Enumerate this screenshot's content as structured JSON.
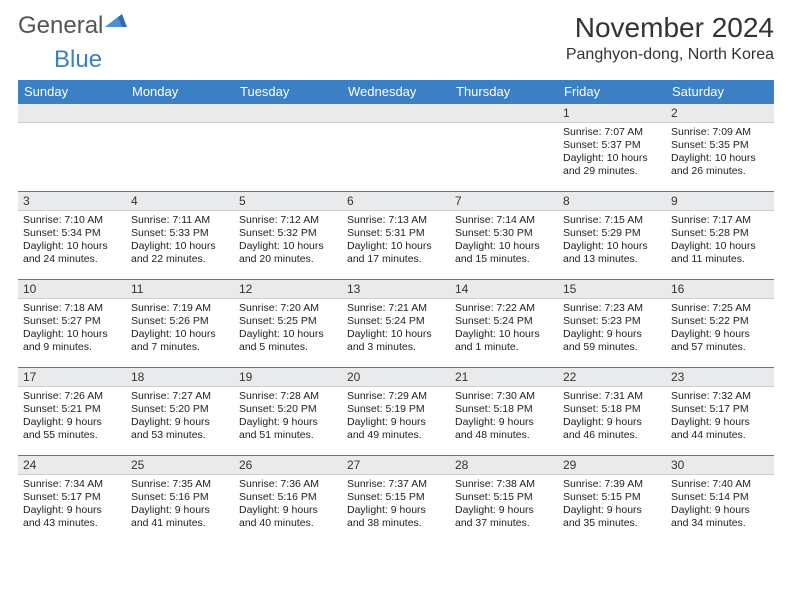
{
  "logo": {
    "part1": "General",
    "part2": "Blue"
  },
  "title": "November 2024",
  "location": "Panghyon-dong, North Korea",
  "colors": {
    "header_bg": "#3b7fc4",
    "header_text": "#ffffff",
    "daynum_bg": "#e9eaeb",
    "row_border": "#3b7fc4",
    "page_bg": "#ffffff"
  },
  "weekdays": [
    "Sunday",
    "Monday",
    "Tuesday",
    "Wednesday",
    "Thursday",
    "Friday",
    "Saturday"
  ],
  "weeks": [
    [
      {
        "blank": true
      },
      {
        "blank": true
      },
      {
        "blank": true
      },
      {
        "blank": true
      },
      {
        "blank": true
      },
      {
        "day": "1",
        "sunrise": "Sunrise: 7:07 AM",
        "sunset": "Sunset: 5:37 PM",
        "daylight": "Daylight: 10 hours and 29 minutes."
      },
      {
        "day": "2",
        "sunrise": "Sunrise: 7:09 AM",
        "sunset": "Sunset: 5:35 PM",
        "daylight": "Daylight: 10 hours and 26 minutes."
      }
    ],
    [
      {
        "day": "3",
        "sunrise": "Sunrise: 7:10 AM",
        "sunset": "Sunset: 5:34 PM",
        "daylight": "Daylight: 10 hours and 24 minutes."
      },
      {
        "day": "4",
        "sunrise": "Sunrise: 7:11 AM",
        "sunset": "Sunset: 5:33 PM",
        "daylight": "Daylight: 10 hours and 22 minutes."
      },
      {
        "day": "5",
        "sunrise": "Sunrise: 7:12 AM",
        "sunset": "Sunset: 5:32 PM",
        "daylight": "Daylight: 10 hours and 20 minutes."
      },
      {
        "day": "6",
        "sunrise": "Sunrise: 7:13 AM",
        "sunset": "Sunset: 5:31 PM",
        "daylight": "Daylight: 10 hours and 17 minutes."
      },
      {
        "day": "7",
        "sunrise": "Sunrise: 7:14 AM",
        "sunset": "Sunset: 5:30 PM",
        "daylight": "Daylight: 10 hours and 15 minutes."
      },
      {
        "day": "8",
        "sunrise": "Sunrise: 7:15 AM",
        "sunset": "Sunset: 5:29 PM",
        "daylight": "Daylight: 10 hours and 13 minutes."
      },
      {
        "day": "9",
        "sunrise": "Sunrise: 7:17 AM",
        "sunset": "Sunset: 5:28 PM",
        "daylight": "Daylight: 10 hours and 11 minutes."
      }
    ],
    [
      {
        "day": "10",
        "sunrise": "Sunrise: 7:18 AM",
        "sunset": "Sunset: 5:27 PM",
        "daylight": "Daylight: 10 hours and 9 minutes."
      },
      {
        "day": "11",
        "sunrise": "Sunrise: 7:19 AM",
        "sunset": "Sunset: 5:26 PM",
        "daylight": "Daylight: 10 hours and 7 minutes."
      },
      {
        "day": "12",
        "sunrise": "Sunrise: 7:20 AM",
        "sunset": "Sunset: 5:25 PM",
        "daylight": "Daylight: 10 hours and 5 minutes."
      },
      {
        "day": "13",
        "sunrise": "Sunrise: 7:21 AM",
        "sunset": "Sunset: 5:24 PM",
        "daylight": "Daylight: 10 hours and 3 minutes."
      },
      {
        "day": "14",
        "sunrise": "Sunrise: 7:22 AM",
        "sunset": "Sunset: 5:24 PM",
        "daylight": "Daylight: 10 hours and 1 minute."
      },
      {
        "day": "15",
        "sunrise": "Sunrise: 7:23 AM",
        "sunset": "Sunset: 5:23 PM",
        "daylight": "Daylight: 9 hours and 59 minutes."
      },
      {
        "day": "16",
        "sunrise": "Sunrise: 7:25 AM",
        "sunset": "Sunset: 5:22 PM",
        "daylight": "Daylight: 9 hours and 57 minutes."
      }
    ],
    [
      {
        "day": "17",
        "sunrise": "Sunrise: 7:26 AM",
        "sunset": "Sunset: 5:21 PM",
        "daylight": "Daylight: 9 hours and 55 minutes."
      },
      {
        "day": "18",
        "sunrise": "Sunrise: 7:27 AM",
        "sunset": "Sunset: 5:20 PM",
        "daylight": "Daylight: 9 hours and 53 minutes."
      },
      {
        "day": "19",
        "sunrise": "Sunrise: 7:28 AM",
        "sunset": "Sunset: 5:20 PM",
        "daylight": "Daylight: 9 hours and 51 minutes."
      },
      {
        "day": "20",
        "sunrise": "Sunrise: 7:29 AM",
        "sunset": "Sunset: 5:19 PM",
        "daylight": "Daylight: 9 hours and 49 minutes."
      },
      {
        "day": "21",
        "sunrise": "Sunrise: 7:30 AM",
        "sunset": "Sunset: 5:18 PM",
        "daylight": "Daylight: 9 hours and 48 minutes."
      },
      {
        "day": "22",
        "sunrise": "Sunrise: 7:31 AM",
        "sunset": "Sunset: 5:18 PM",
        "daylight": "Daylight: 9 hours and 46 minutes."
      },
      {
        "day": "23",
        "sunrise": "Sunrise: 7:32 AM",
        "sunset": "Sunset: 5:17 PM",
        "daylight": "Daylight: 9 hours and 44 minutes."
      }
    ],
    [
      {
        "day": "24",
        "sunrise": "Sunrise: 7:34 AM",
        "sunset": "Sunset: 5:17 PM",
        "daylight": "Daylight: 9 hours and 43 minutes."
      },
      {
        "day": "25",
        "sunrise": "Sunrise: 7:35 AM",
        "sunset": "Sunset: 5:16 PM",
        "daylight": "Daylight: 9 hours and 41 minutes."
      },
      {
        "day": "26",
        "sunrise": "Sunrise: 7:36 AM",
        "sunset": "Sunset: 5:16 PM",
        "daylight": "Daylight: 9 hours and 40 minutes."
      },
      {
        "day": "27",
        "sunrise": "Sunrise: 7:37 AM",
        "sunset": "Sunset: 5:15 PM",
        "daylight": "Daylight: 9 hours and 38 minutes."
      },
      {
        "day": "28",
        "sunrise": "Sunrise: 7:38 AM",
        "sunset": "Sunset: 5:15 PM",
        "daylight": "Daylight: 9 hours and 37 minutes."
      },
      {
        "day": "29",
        "sunrise": "Sunrise: 7:39 AM",
        "sunset": "Sunset: 5:15 PM",
        "daylight": "Daylight: 9 hours and 35 minutes."
      },
      {
        "day": "30",
        "sunrise": "Sunrise: 7:40 AM",
        "sunset": "Sunset: 5:14 PM",
        "daylight": "Daylight: 9 hours and 34 minutes."
      }
    ]
  ]
}
